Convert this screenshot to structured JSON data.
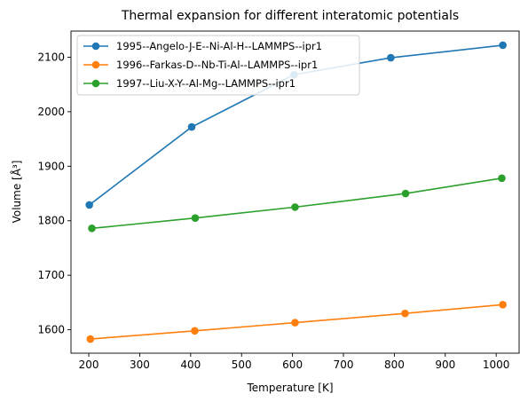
{
  "chart_data": {
    "type": "line",
    "title": "Thermal expansion for different interatomic potentials",
    "xlabel": "Temperature [K]",
    "ylabel": "Volume [Å³]",
    "xlim": [
      165,
      1045
    ],
    "ylim": [
      1557,
      2148
    ],
    "xticks": [
      200,
      300,
      400,
      500,
      600,
      700,
      800,
      900,
      1000
    ],
    "yticks": [
      1600,
      1700,
      1800,
      1900,
      2000,
      2100
    ],
    "grid": false,
    "legend_position": "top-left",
    "series": [
      {
        "name": "1995--Angelo-J-E--Ni-Al-H--LAMMPS--ipr1",
        "color": "#1f77b4",
        "x": [
          201,
          402,
          603,
          793,
          1013
        ],
        "y": [
          1829,
          1972,
          2068,
          2099,
          2122
        ]
      },
      {
        "name": "1996--Farkas-D--Nb-Ti-Al--LAMMPS--ipr1",
        "color": "#ff7f0e",
        "x": [
          203,
          408,
          605,
          821,
          1013
        ],
        "y": [
          1583,
          1598,
          1613,
          1630,
          1646
        ]
      },
      {
        "name": "1997--Liu-X-Y--Al-Mg--LAMMPS--ipr1",
        "color": "#2ca02c",
        "x": [
          206,
          409,
          605,
          822,
          1011
        ],
        "y": [
          1786,
          1805,
          1825,
          1850,
          1878
        ]
      }
    ]
  }
}
